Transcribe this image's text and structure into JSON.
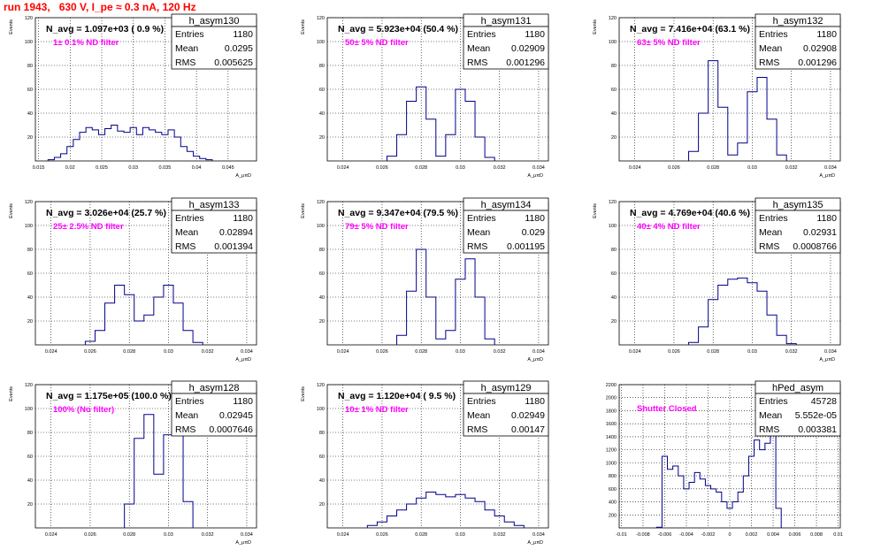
{
  "run_title": "run 1943,   630 V, I_pe ≈ 0.3 nA, 120 Hz",
  "colors": {
    "histogram": "#00008b",
    "filter_label": "#ff00ff",
    "title": "#ff0000",
    "grid": "#000000"
  },
  "chart_data": [
    {
      "type": "bar",
      "hist_name": "h_asym130",
      "n_avg": "N_avg = 1.097e+03 ( 0.9 %)",
      "filter": "1± 0.1% ND filter",
      "stats": {
        "entries": "1180",
        "mean": "0.0295",
        "rms": "0.005625"
      },
      "ylabel": "Events",
      "xlabel": "A_μπD",
      "grid": true,
      "xlim": [
        0.0145,
        0.0495
      ],
      "ylim": [
        0,
        120
      ],
      "xticks": [
        "0.015",
        "0.02",
        "0.025",
        "0.03",
        "0.035",
        "0.04",
        "0.045"
      ],
      "xtick_values": [
        0.015,
        0.02,
        0.025,
        0.03,
        0.035,
        0.04,
        0.045
      ],
      "yticks": [
        "20",
        "40",
        "60",
        "80",
        "100",
        "120"
      ],
      "ytick_values": [
        20,
        40,
        60,
        80,
        100,
        120
      ],
      "x": [
        0.017,
        0.018,
        0.019,
        0.02,
        0.021,
        0.022,
        0.023,
        0.024,
        0.025,
        0.026,
        0.027,
        0.028,
        0.029,
        0.03,
        0.031,
        0.032,
        0.033,
        0.034,
        0.035,
        0.036,
        0.037,
        0.038,
        0.039,
        0.04,
        0.041,
        0.042
      ],
      "values": [
        1,
        3,
        6,
        12,
        18,
        24,
        28,
        26,
        22,
        27,
        30,
        25,
        24,
        28,
        22,
        28,
        26,
        24,
        22,
        26,
        20,
        12,
        8,
        4,
        2,
        1
      ]
    },
    {
      "type": "bar",
      "hist_name": "h_asym131",
      "n_avg": "N_avg = 5.923e+04 (50.4 %)",
      "filter": "50± 5% ND filter",
      "stats": {
        "entries": "1180",
        "mean": "0.02909",
        "rms": "0.001296"
      },
      "ylabel": "Events",
      "xlabel": "A_μπD",
      "grid": true,
      "xlim": [
        0.0232,
        0.0345
      ],
      "ylim": [
        0,
        120
      ],
      "xticks": [
        "0.024",
        "0.026",
        "0.028",
        "0.03",
        "0.032",
        "0.034"
      ],
      "xtick_values": [
        0.024,
        0.026,
        0.028,
        0.03,
        0.032,
        0.034
      ],
      "yticks": [
        "20",
        "40",
        "60",
        "80",
        "100",
        "120"
      ],
      "ytick_values": [
        20,
        40,
        60,
        80,
        100,
        120
      ],
      "x": [
        0.0265,
        0.027,
        0.0275,
        0.028,
        0.0285,
        0.029,
        0.0295,
        0.03,
        0.0305,
        0.031,
        0.0315
      ],
      "values": [
        4,
        22,
        50,
        62,
        35,
        4,
        22,
        60,
        50,
        20,
        3
      ]
    },
    {
      "type": "bar",
      "hist_name": "h_asym132",
      "n_avg": "N_avg = 7.416e+04 (63.1 %)",
      "filter": "63± 5% ND filter",
      "stats": {
        "entries": "1180",
        "mean": "0.02908",
        "rms": "0.001296"
      },
      "ylabel": "Events",
      "xlabel": "A_μπD",
      "grid": true,
      "xlim": [
        0.0232,
        0.0345
      ],
      "ylim": [
        0,
        120
      ],
      "xticks": [
        "0.024",
        "0.026",
        "0.028",
        "0.03",
        "0.032",
        "0.034"
      ],
      "xtick_values": [
        0.024,
        0.026,
        0.028,
        0.03,
        0.032,
        0.034
      ],
      "yticks": [
        "20",
        "40",
        "60",
        "80",
        "100",
        "120"
      ],
      "ytick_values": [
        20,
        40,
        60,
        80,
        100,
        120
      ],
      "x": [
        0.027,
        0.0275,
        0.028,
        0.0285,
        0.029,
        0.0295,
        0.03,
        0.0305,
        0.031,
        0.0315
      ],
      "values": [
        8,
        40,
        84,
        45,
        5,
        15,
        58,
        70,
        35,
        5
      ]
    },
    {
      "type": "bar",
      "hist_name": "h_asym133",
      "n_avg": "N_avg = 3.026e+04 (25.7 %)",
      "filter": "25± 2.5% ND filter",
      "stats": {
        "entries": "1180",
        "mean": "0.02894",
        "rms": "0.001394"
      },
      "ylabel": "Events",
      "xlabel": "A_μπD",
      "grid": true,
      "xlim": [
        0.0232,
        0.0345
      ],
      "ylim": [
        0,
        120
      ],
      "xticks": [
        "0.024",
        "0.026",
        "0.028",
        "0.03",
        "0.032",
        "0.034"
      ],
      "xtick_values": [
        0.024,
        0.026,
        0.028,
        0.03,
        0.032,
        0.034
      ],
      "yticks": [
        "20",
        "40",
        "60",
        "80",
        "100",
        "120"
      ],
      "ytick_values": [
        20,
        40,
        60,
        80,
        100,
        120
      ],
      "x": [
        0.026,
        0.0265,
        0.027,
        0.0275,
        0.028,
        0.0285,
        0.029,
        0.0295,
        0.03,
        0.0305,
        0.031,
        0.0315
      ],
      "values": [
        3,
        12,
        35,
        50,
        42,
        20,
        25,
        40,
        50,
        35,
        12,
        2
      ]
    },
    {
      "type": "bar",
      "hist_name": "h_asym134",
      "n_avg": "N_avg = 9.347e+04 (79.5 %)",
      "filter": "79± 5% ND filter",
      "stats": {
        "entries": "1180",
        "mean": "0.029",
        "rms": "0.001195"
      },
      "ylabel": "Events",
      "xlabel": "A_μπD",
      "grid": true,
      "xlim": [
        0.0232,
        0.0345
      ],
      "ylim": [
        0,
        120
      ],
      "xticks": [
        "0.024",
        "0.026",
        "0.028",
        "0.03",
        "0.032",
        "0.034"
      ],
      "xtick_values": [
        0.024,
        0.026,
        0.028,
        0.03,
        0.032,
        0.034
      ],
      "yticks": [
        "20",
        "40",
        "60",
        "80",
        "100",
        "120"
      ],
      "ytick_values": [
        20,
        40,
        60,
        80,
        100,
        120
      ],
      "x": [
        0.027,
        0.0275,
        0.028,
        0.0285,
        0.029,
        0.0295,
        0.03,
        0.0305,
        0.031,
        0.0315
      ],
      "values": [
        8,
        45,
        80,
        40,
        5,
        12,
        55,
        72,
        40,
        5
      ]
    },
    {
      "type": "bar",
      "hist_name": "h_asym135",
      "n_avg": "N_avg = 4.769e+04 (40.6 %)",
      "filter": "40± 4% ND filter",
      "stats": {
        "entries": "1180",
        "mean": "0.02931",
        "rms": "0.0008766"
      },
      "ylabel": "Events",
      "xlabel": "A_μπD",
      "grid": true,
      "xlim": [
        0.0232,
        0.0345
      ],
      "ylim": [
        0,
        120
      ],
      "xticks": [
        "0.024",
        "0.026",
        "0.028",
        "0.03",
        "0.032",
        "0.034"
      ],
      "xtick_values": [
        0.024,
        0.026,
        0.028,
        0.03,
        0.032,
        0.034
      ],
      "yticks": [
        "20",
        "40",
        "60",
        "80",
        "100",
        "120"
      ],
      "ytick_values": [
        20,
        40,
        60,
        80,
        100,
        120
      ],
      "x": [
        0.027,
        0.0275,
        0.028,
        0.0285,
        0.029,
        0.0295,
        0.03,
        0.0305,
        0.031,
        0.0315,
        0.032
      ],
      "values": [
        2,
        15,
        38,
        50,
        55,
        56,
        52,
        45,
        25,
        8,
        1
      ]
    },
    {
      "type": "bar",
      "hist_name": "h_asym128",
      "n_avg": "N_avg = 1.175e+05 (100.0 %)",
      "filter": "100% (No filter)",
      "stats": {
        "entries": "1180",
        "mean": "0.02945",
        "rms": "0.0007646"
      },
      "ylabel": "Events",
      "xlabel": "A_μπD",
      "grid": true,
      "xlim": [
        0.0232,
        0.0345
      ],
      "ylim": [
        0,
        120
      ],
      "xticks": [
        "0.024",
        "0.026",
        "0.028",
        "0.03",
        "0.032",
        "0.034"
      ],
      "xtick_values": [
        0.024,
        0.026,
        0.028,
        0.03,
        0.032,
        0.034
      ],
      "yticks": [
        "20",
        "40",
        "60",
        "80",
        "100",
        "120"
      ],
      "ytick_values": [
        20,
        40,
        60,
        80,
        100,
        120
      ],
      "x": [
        0.028,
        0.0285,
        0.029,
        0.0295,
        0.03,
        0.0305,
        0.031
      ],
      "values": [
        20,
        75,
        95,
        45,
        78,
        80,
        22
      ]
    },
    {
      "type": "bar",
      "hist_name": "h_asym129",
      "n_avg": "N_avg = 1.120e+04 ( 9.5 %)",
      "filter": "10± 1% ND filter",
      "stats": {
        "entries": "1180",
        "mean": "0.02949",
        "rms": "0.00147"
      },
      "ylabel": "Events",
      "xlabel": "A_μπD",
      "grid": true,
      "xlim": [
        0.0232,
        0.0345
      ],
      "ylim": [
        0,
        120
      ],
      "xticks": [
        "0.024",
        "0.026",
        "0.028",
        "0.03",
        "0.032",
        "0.034"
      ],
      "xtick_values": [
        0.024,
        0.026,
        0.028,
        0.03,
        0.032,
        0.034
      ],
      "yticks": [
        "20",
        "40",
        "60",
        "80",
        "100",
        "120"
      ],
      "ytick_values": [
        20,
        40,
        60,
        80,
        100,
        120
      ],
      "x": [
        0.0255,
        0.026,
        0.0265,
        0.027,
        0.0275,
        0.028,
        0.0285,
        0.029,
        0.0295,
        0.03,
        0.0305,
        0.031,
        0.0315,
        0.032,
        0.0325,
        0.033
      ],
      "values": [
        2,
        5,
        10,
        15,
        20,
        25,
        30,
        28,
        26,
        28,
        25,
        22,
        15,
        10,
        5,
        2
      ]
    },
    {
      "type": "bar",
      "hist_name": "hPed_asym",
      "n_avg": "",
      "filter": "Shutter Closed",
      "stats": {
        "entries": "45728",
        "mean": "5.552e-05",
        "rms": "0.003381"
      },
      "ylabel": "",
      "xlabel": "",
      "grid": true,
      "xlim": [
        -0.0102,
        0.0102
      ],
      "ylim": [
        0,
        2200
      ],
      "xticks": [
        "-0.01",
        "-0.008",
        "-0.006",
        "-0.004",
        "-0.002",
        "0",
        "0.002",
        "0.004",
        "0.006",
        "0.008",
        "0.01"
      ],
      "xtick_values": [
        -0.01,
        -0.008,
        -0.006,
        -0.004,
        -0.002,
        0,
        0.002,
        0.004,
        0.006,
        0.008,
        0.01
      ],
      "yticks": [
        "200",
        "400",
        "600",
        "800",
        "1000",
        "1200",
        "1400",
        "1600",
        "1800",
        "2000",
        "2200"
      ],
      "ytick_values": [
        200,
        400,
        600,
        800,
        1000,
        1200,
        1400,
        1600,
        1800,
        2000,
        2200
      ],
      "x": [
        -0.0065,
        -0.006,
        -0.0055,
        -0.005,
        -0.0045,
        -0.004,
        -0.0035,
        -0.003,
        -0.0025,
        -0.002,
        -0.0015,
        -0.001,
        -0.0005,
        0.0,
        0.0005,
        0.001,
        0.0015,
        0.002,
        0.0025,
        0.003,
        0.0035,
        0.004,
        0.0045
      ],
      "values": [
        10,
        1100,
        900,
        950,
        800,
        600,
        700,
        850,
        750,
        650,
        600,
        550,
        400,
        300,
        400,
        550,
        800,
        1100,
        1350,
        1200,
        1300,
        2000,
        300
      ]
    }
  ]
}
